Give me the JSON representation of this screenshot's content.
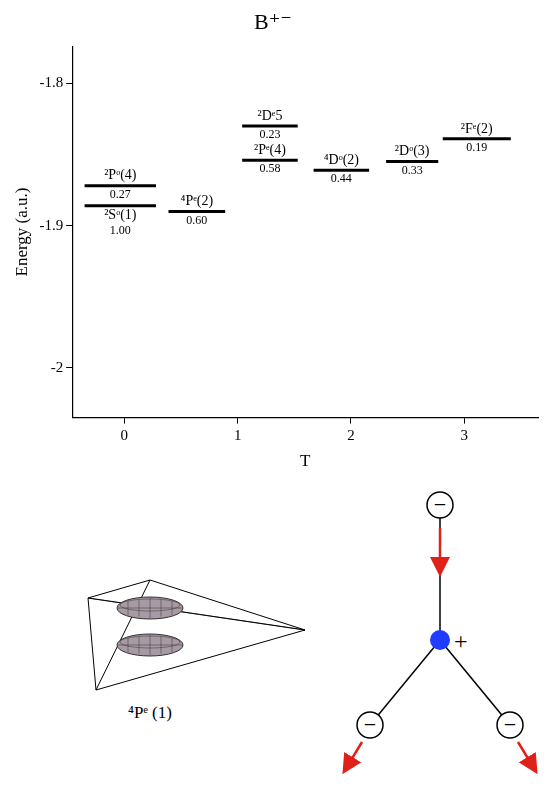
{
  "chart_data": {
    "type": "levels",
    "title": "B⁺⁻",
    "x_label": "T",
    "y_label": "Energy (a.u.)",
    "xlim": [
      -0.46,
      3.65
    ],
    "xticks": [
      0,
      1,
      2,
      3
    ],
    "ylim": [
      -2.035,
      -1.774
    ],
    "yticks": [
      -1.8,
      -1.9,
      -2.0
    ],
    "grid": false,
    "color": "#000000",
    "levels": [
      {
        "name": "²Pᵒ(4)",
        "x": [
          -0.35,
          0.28
        ],
        "energy": -1.872,
        "fraction": 0.27
      },
      {
        "name": "²Sᵒ(1)",
        "x": [
          -0.35,
          0.28
        ],
        "energy": -1.886,
        "fraction": {
          "value": 1,
          "label": "1.00"
        }
      },
      {
        "name": "⁴Pᵉ(2)",
        "x": [
          0.39,
          0.89
        ],
        "energy": -1.89,
        "fraction": {
          "value": 0.6,
          "label": "0.60"
        }
      },
      {
        "name": "²Dᵉ5",
        "x": [
          1.04,
          1.53
        ],
        "energy": -1.83,
        "fraction": 0.23
      },
      {
        "name": "²Pᵉ(4)",
        "x": [
          1.04,
          1.53
        ],
        "energy": -1.854,
        "fraction": 0.58
      },
      {
        "name": "⁴Dᵒ(2)",
        "x": [
          1.67,
          2.16
        ],
        "energy": -1.861,
        "fraction": 0.44
      },
      {
        "name": "²Dᵒ(3)",
        "x": [
          2.31,
          2.77
        ],
        "energy": -1.855,
        "fraction": 0.33
      },
      {
        "name": "²Fᵉ(2)",
        "x": [
          2.81,
          3.41
        ],
        "energy": -1.839,
        "fraction": 0.19
      }
    ]
  },
  "figure": {
    "surface_caption": "⁴Pᵉ (1)",
    "center_charge": "+",
    "outer_charges": [
      "−",
      "−",
      "−"
    ]
  }
}
